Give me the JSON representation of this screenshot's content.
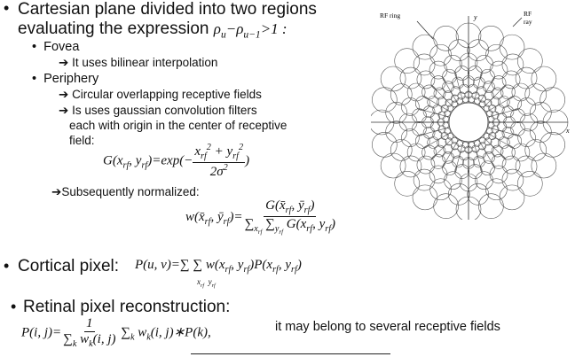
{
  "slide": {
    "b1_line1": "Cartesian plane divided into two regions",
    "b1_line2": "evaluating the expression",
    "b1_expr": "ρu−ρu−1>1 :",
    "fovea": "Fovea",
    "fovea_sub": "It uses bilinear interpolation",
    "periphery": "Periphery",
    "periph_sub1": "Circular overlapping receptive fields",
    "periph_sub2_l1": "Is uses gaussian convolution filters",
    "periph_sub2_l2": "each  with origin in the center of receptive",
    "periph_sub2_l3": "field:",
    "gauss_formula": "G(xrf, yrf)=exp(−(xrf² + yrf²)/2σ²)",
    "normalized": "Subsequently normalized:",
    "weight_formula": "w(x̄rf, ȳrf)=G(x̄rf, ȳrf)/Σx Σy G(xrf, yrf)",
    "cortical_label": "Cortical pixel:",
    "cortical_formula": "P(u, v)=Σ Σ w(xrf, yrf)P(xrf, yrf)",
    "retinal_label": "Retinal pixel reconstruction:",
    "retinal_formula": "P(i, j)=1/Σk wk(i, j) Σk wk(i, j)∗P(k),",
    "retinal_note": "it may belong to several receptive fields"
  },
  "diagram": {
    "label_rf_ring": "RF ring",
    "label_y": "y",
    "label_rf": "RF",
    "label_ray": "ray",
    "label_x": "x"
  }
}
